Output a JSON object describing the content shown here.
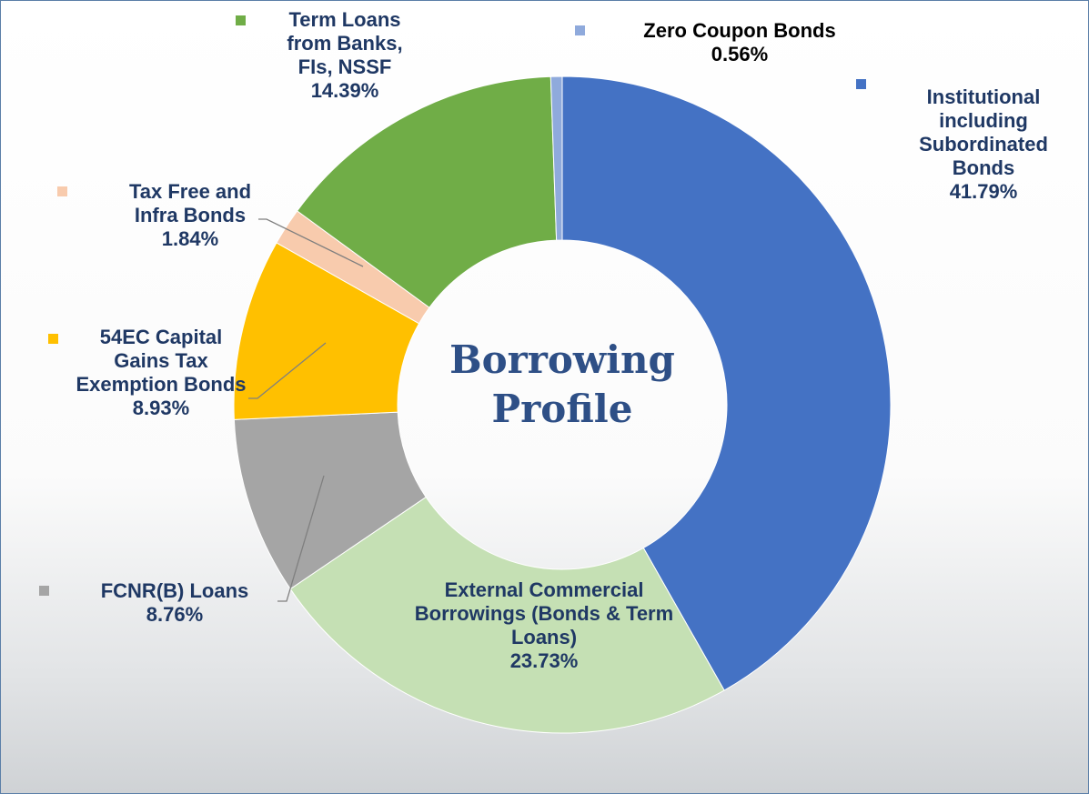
{
  "chart_data": {
    "type": "donut",
    "title": "Borrowing Profile",
    "categories": [
      "Institutional including Subordinated Bonds",
      "External Commercial Borrowings (Bonds & Term Loans)",
      "FCNR(B) Loans",
      "54EC Capital Gains Tax Exemption Bonds",
      "Tax Free and Infra Bonds",
      "Term Loans from Banks, FIs, NSSF",
      "Zero Coupon Bonds"
    ],
    "values": [
      41.79,
      23.73,
      8.76,
      8.93,
      1.84,
      14.39,
      0.56
    ],
    "value_labels": [
      "41.79%",
      "23.73%",
      "8.76%",
      "8.93%",
      "1.84%",
      "14.39%",
      "0.56%"
    ],
    "colors": [
      "#4472c4",
      "#c5e0b4",
      "#a5a5a5",
      "#ffc000",
      "#f8cbad",
      "#70ad47",
      "#8faadc"
    ]
  }
}
